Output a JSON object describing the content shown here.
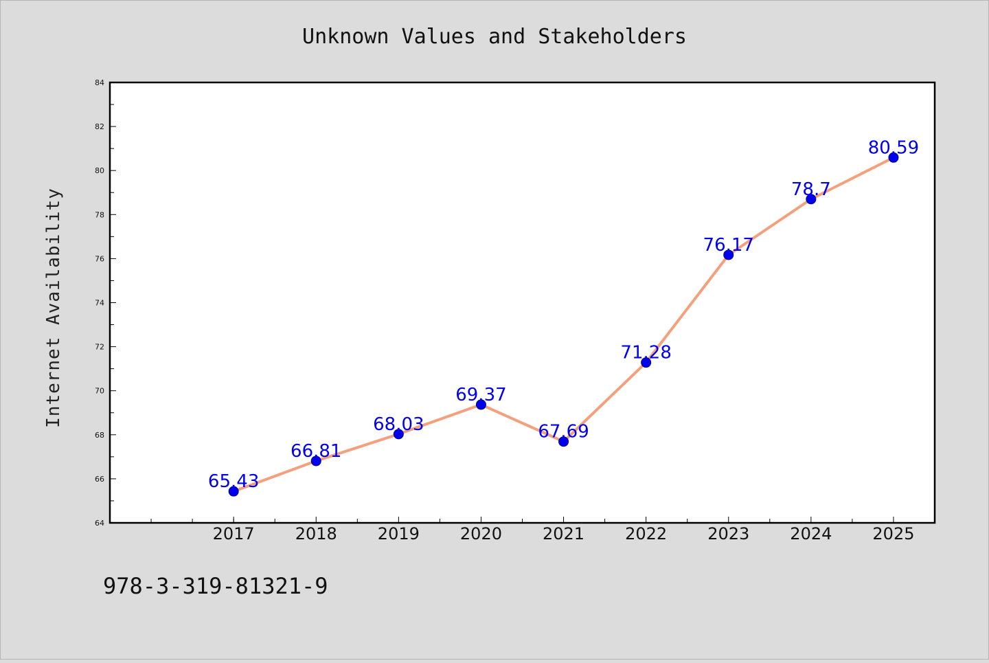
{
  "chart_data": {
    "type": "line",
    "title": "Unknown Values and Stakeholders",
    "xlabel": "",
    "ylabel": "Internet Availability",
    "categories": [
      "2017",
      "2018",
      "2019",
      "2020",
      "2021",
      "2022",
      "2023",
      "2024",
      "2025"
    ],
    "series": [
      {
        "values": [
          65.43,
          66.81,
          68.03,
          69.37,
          67.69,
          71.28,
          76.17,
          78.7,
          80.59
        ]
      }
    ],
    "data_labels": [
      "65.43",
      "66.81",
      "68.03",
      "69.37",
      "67.69",
      "71.28",
      "76.17",
      "78.7",
      "80.59"
    ],
    "ylim": [
      64,
      84
    ],
    "yticks": [
      "64",
      "66",
      "68",
      "70",
      "72",
      "74",
      "76",
      "78",
      "80",
      "82",
      "84"
    ],
    "x_range": [
      2015.5,
      2025.5
    ],
    "grid": false,
    "legend": "none"
  },
  "footer_text": "978-3-319-81321-9",
  "colors": {
    "background": "#dcdcdc",
    "plot_background": "#ffffff",
    "line": "#f4a07c",
    "marker": "#0000ee",
    "data_label": "#0000ee"
  }
}
